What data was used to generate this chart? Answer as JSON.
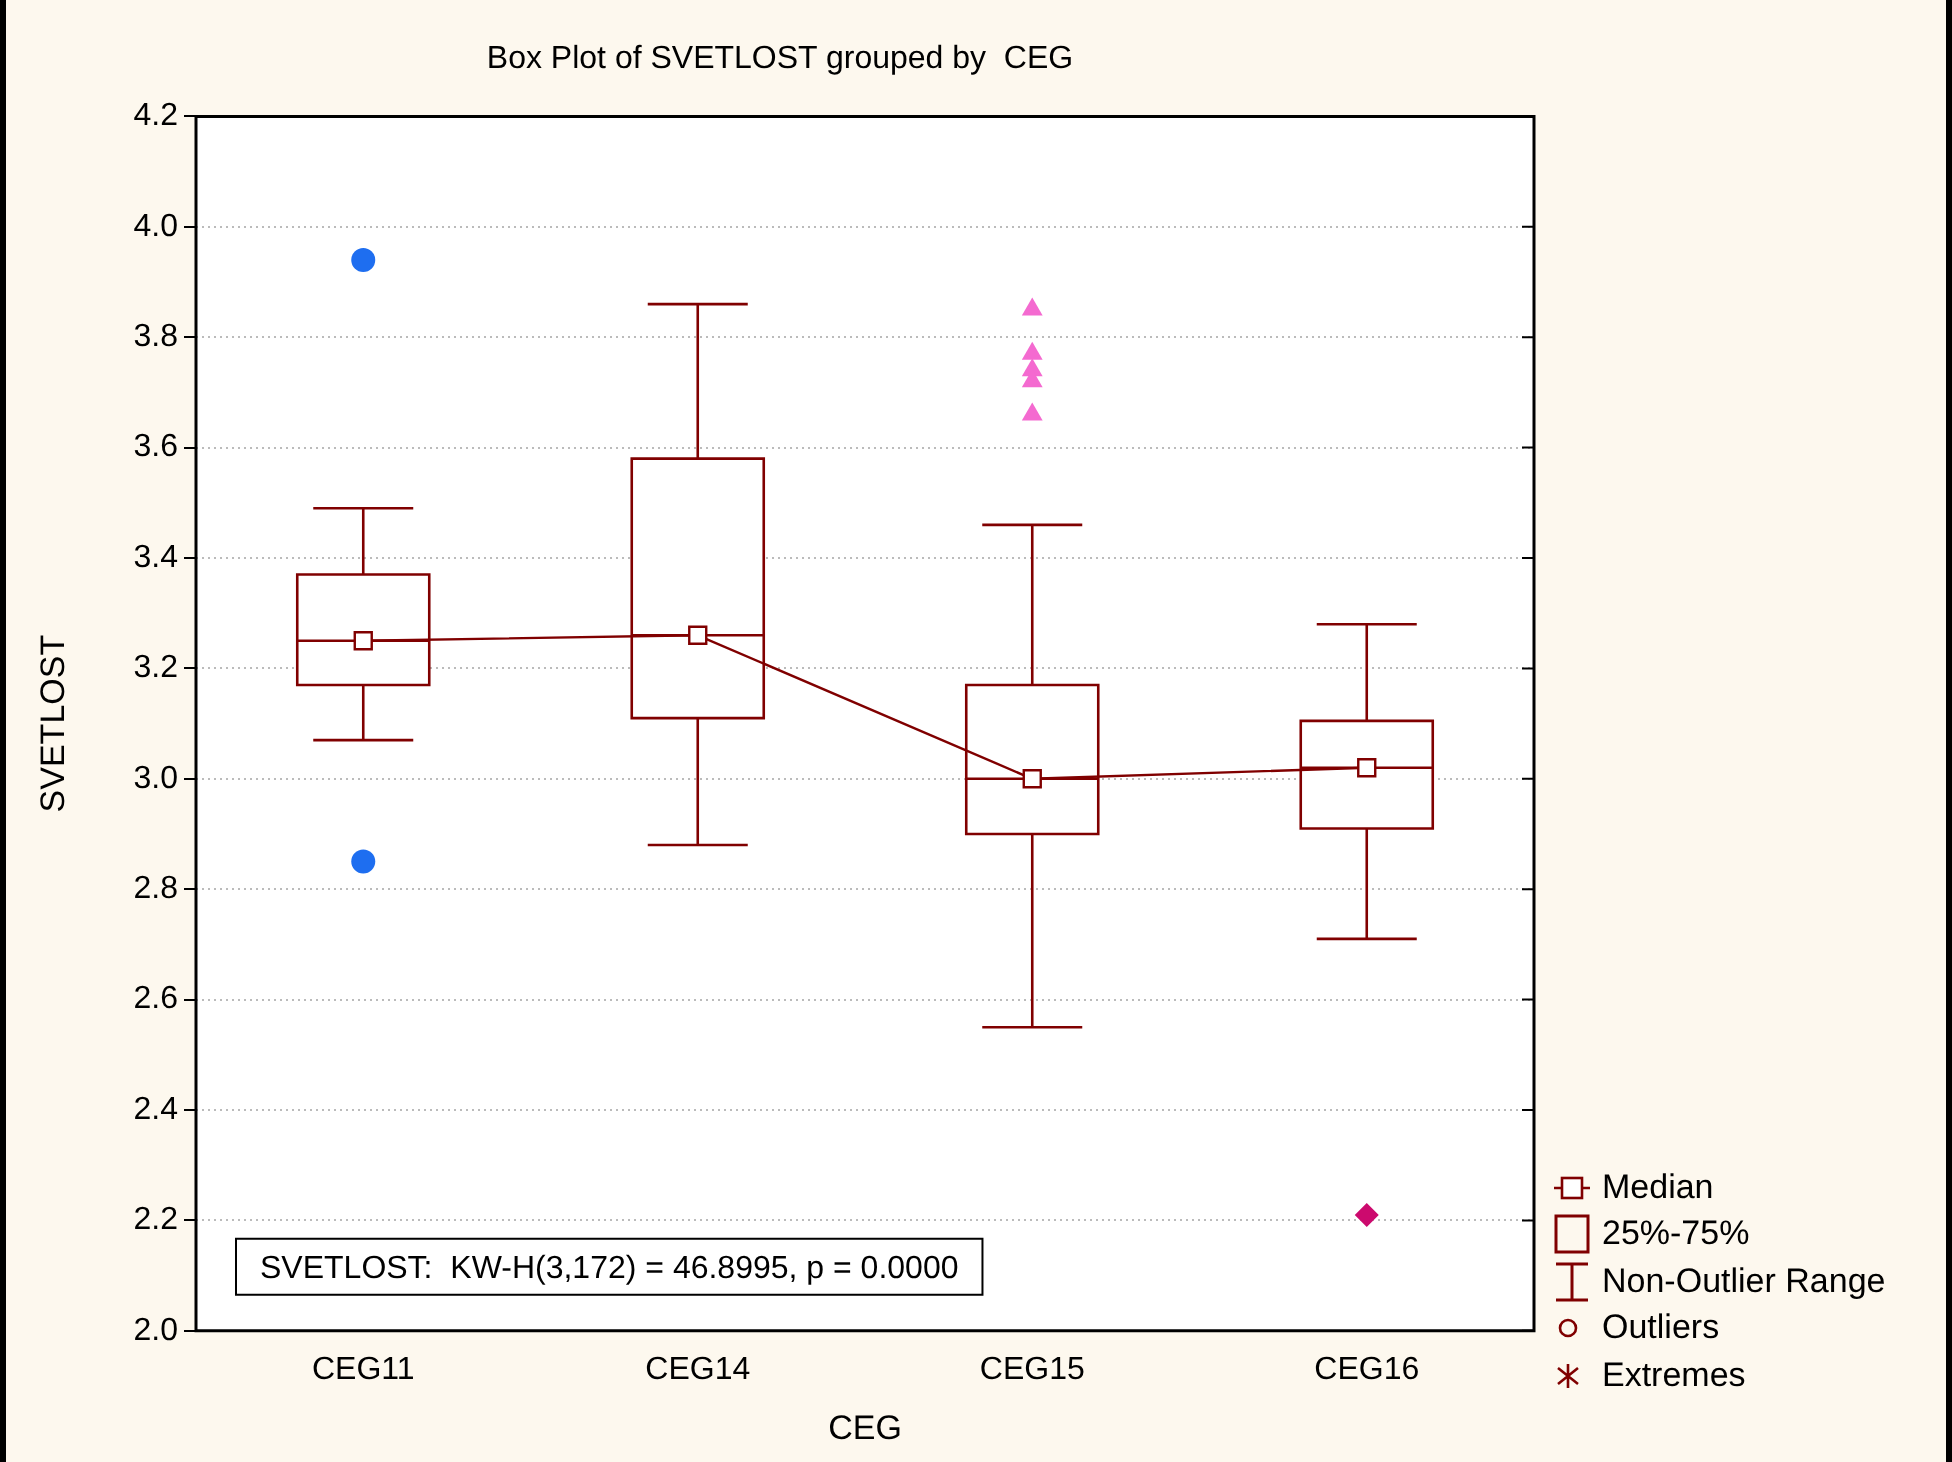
{
  "chart_data": {
    "type": "box",
    "title": "Box Plot of SVETLOST grouped by  CEG",
    "xlabel": "CEG",
    "ylabel": "SVETLOST",
    "categories": [
      "CEG11",
      "CEG14",
      "CEG15",
      "CEG16"
    ],
    "ylim": [
      2.0,
      4.2
    ],
    "yticks": [
      {
        "value": 2,
        "label": "2.0"
      },
      {
        "value": 2.2,
        "label": "2.2"
      },
      {
        "value": 2.4,
        "label": "2.4"
      },
      {
        "value": 2.6,
        "label": "2.6"
      },
      {
        "value": 2.8,
        "label": "2.8"
      },
      {
        "value": 3,
        "label": "3.0"
      },
      {
        "value": 3.2,
        "label": "3.2"
      },
      {
        "value": 3.4,
        "label": "3.4"
      },
      {
        "value": 3.6,
        "label": "3.6"
      },
      {
        "value": 3.8,
        "label": "3.8"
      },
      {
        "value": 4,
        "label": "4.0"
      },
      {
        "value": 4.2,
        "label": "4.2"
      }
    ],
    "grid": "y",
    "annotations": [
      "SVETLOST:  KW-H(3,172) = 46.8995, p = 0.0000",
      "Median",
      "25%-75%",
      "Non-Outlier Range",
      "Outliers",
      "Extremes"
    ],
    "series": [
      {
        "color": "#800000",
        "boxes": [
          {
            "low": 3.07,
            "q1": 3.17,
            "median": 3.25,
            "q3": 3.37,
            "high": 3.49
          },
          {
            "low": 2.88,
            "q1": 3.11,
            "median": 3.26,
            "q3": 3.58,
            "high": 3.86
          },
          {
            "low": 2.55,
            "q1": 2.9,
            "median": 3.0,
            "q3": 3.17,
            "high": 3.46
          },
          {
            "low": 2.71,
            "q1": 2.91,
            "median": 3.02,
            "q3": 3.105,
            "high": 3.28
          }
        ]
      },
      {
        "type": "line",
        "color": "#800000",
        "marker": "square",
        "values": [
          3.25,
          3.26,
          3.0,
          3.02
        ]
      },
      {
        "type": "scatter",
        "color": "#1e6ef0",
        "marker": "circle",
        "x": [
          "CEG11",
          "CEG11"
        ],
        "values": [
          3.94,
          2.85
        ]
      },
      {
        "type": "scatter",
        "color": "#f46ad0",
        "marker": "triangle",
        "x": [
          "CEG15",
          "CEG15",
          "CEG15",
          "CEG15",
          "CEG15"
        ],
        "values": [
          3.85,
          3.77,
          3.74,
          3.72,
          3.66
        ]
      },
      {
        "type": "scatter",
        "color": "#cc0a6e",
        "marker": "diamond",
        "x": [
          "CEG16"
        ],
        "values": [
          2.21
        ]
      }
    ]
  }
}
